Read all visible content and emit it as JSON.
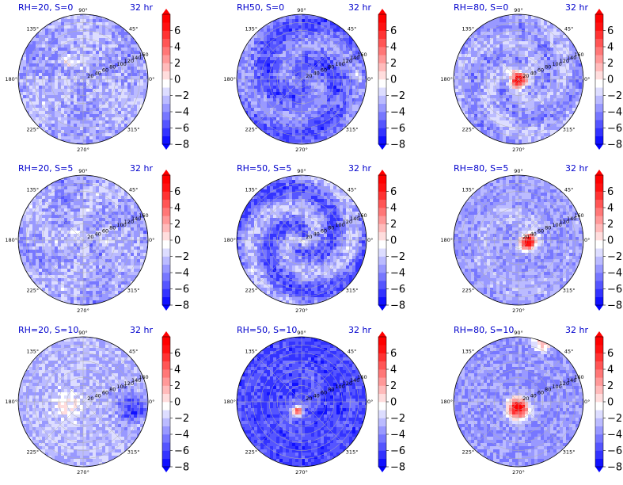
{
  "chart_data": {
    "type": "heatmap",
    "projection": "polar",
    "layout": "3x3 grid, each panel with its own vertical colorbar",
    "colormap": "bwr",
    "contour_levels": [
      -8,
      -7,
      -6,
      -5,
      -4,
      -3,
      -2,
      -1,
      0,
      1,
      2,
      3,
      4,
      5,
      6,
      7
    ],
    "colorbar_ticks": [
      "6",
      "4",
      "2",
      "0",
      "−2",
      "−4",
      "−6",
      "−8"
    ],
    "colorbar_extend": "both",
    "angular_tick_labels": [
      "0°",
      "45°",
      "90°",
      "135°",
      "180°",
      "225°",
      "270°",
      "315°"
    ],
    "radial_tick_labels": [
      "20",
      "40",
      "60",
      "80",
      "100",
      "120",
      "140",
      "160"
    ],
    "radial_label_angle_deg": 22.5,
    "grid": true,
    "panels": [
      {
        "title": "RH=20, S=0",
        "time": "32 hr",
        "core": "weak scattered warm spots, no organized vortex",
        "mean_level": -3
      },
      {
        "title": "RH50, S=0",
        "time": "32 hr",
        "core": "no warm core; strong negative ring around center",
        "mean_level": -4.5
      },
      {
        "title": "RH=80, S=0",
        "time": "32 hr",
        "core": "strong warm core at center",
        "mean_level": -3
      },
      {
        "title": "RH=20, S=5",
        "time": "32 hr",
        "core": "weak scattered warm spots",
        "mean_level": -3
      },
      {
        "title": "RH=50, S=5",
        "time": "32 hr",
        "core": "small warm spot near center, spiral negative bands",
        "mean_level": -4
      },
      {
        "title": "RH=80, S=5",
        "time": "32 hr",
        "core": "warm core displaced east of center with spiral band",
        "mean_level": -3.5
      },
      {
        "title": "RH=20, S=10",
        "time": "32 hr",
        "core": "broad weak warm area west of center, strong negative to east",
        "mean_level": -3
      },
      {
        "title": "RH=50, S=10",
        "time": "32 hr",
        "core": "small strong warm core southwest of center, strong negative surroundings",
        "mean_level": -5.5
      },
      {
        "title": "RH=80, S=10",
        "time": "32 hr",
        "core": "large strong warm core at center, warm band at top edge",
        "mean_level": -3.5
      }
    ]
  }
}
